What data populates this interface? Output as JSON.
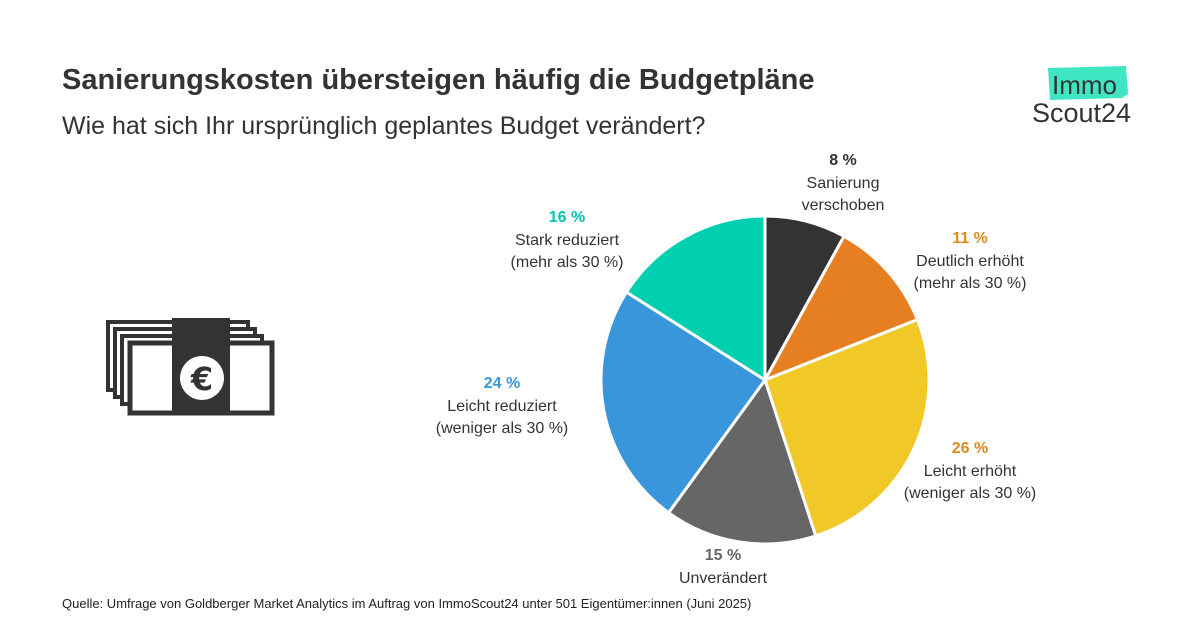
{
  "header": {
    "title": "Sanierungskosten übersteigen häufig die Budgetpläne",
    "subtitle": "Wie hat sich Ihr ursprünglich geplantes Budget verändert?"
  },
  "logo": {
    "line1": "Immo",
    "line2": "Scout24",
    "accent": "#3ee6c2"
  },
  "icon": "money-bills-euro-icon",
  "source": "Quelle: Umfrage von Goldberger Market Analytics im Auftrag von ImmoScout24 unter 501 Eigentümer:innen (Juni 2025)",
  "chart_data": {
    "type": "pie",
    "unit": "%",
    "slices": [
      {
        "pct": "8 %",
        "value": 8,
        "label1": "Sanierung",
        "label2": "verschoben",
        "color": "#333333",
        "label_color": "#333333"
      },
      {
        "pct": "11 %",
        "value": 11,
        "label1": "Deutlich erhöht",
        "label2": "(mehr als 30 %)",
        "color": "#e67e22",
        "label_color": "#e08a1e"
      },
      {
        "pct": "26 %",
        "value": 26,
        "label1": "Leicht erhöht",
        "label2": "(weniger als 30 %)",
        "color": "#f0c929",
        "label_color": "#e08a1e"
      },
      {
        "pct": "15 %",
        "value": 15,
        "label1": "Unverändert",
        "label2": "",
        "color": "#666666",
        "label_color": "#666666"
      },
      {
        "pct": "24 %",
        "value": 24,
        "label1": "Leicht reduziert",
        "label2": "(weniger als 30 %)",
        "color": "#3a96db",
        "label_color": "#3a96db"
      },
      {
        "pct": "16 %",
        "value": 16,
        "label1": "Stark reduziert",
        "label2": "(mehr als 30 %)",
        "color": "#00cfb0",
        "label_color": "#00c4aa"
      }
    ]
  }
}
